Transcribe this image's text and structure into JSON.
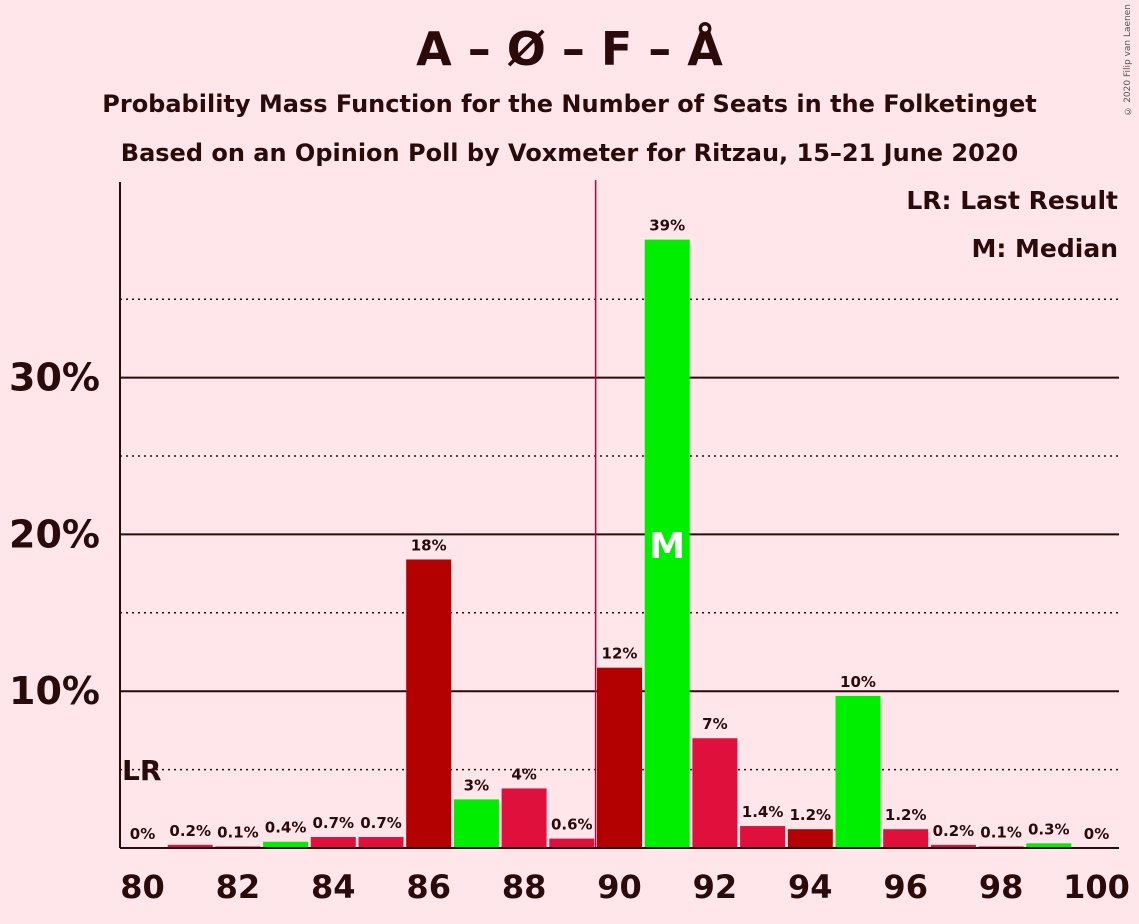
{
  "title": "A – Ø – F – Å",
  "subtitle1": "Probability Mass Function for the Number of Seats in the Folketinget",
  "subtitle2": "Based on an Opinion Poll by Voxmeter for Ritzau, 15–21 June 2020",
  "copyright": "© 2020 Filip van Laenen",
  "legend": {
    "lr": "LR: Last Result",
    "m": "M: Median"
  },
  "markers": {
    "last_result_label": "LR",
    "median_label": "M"
  },
  "colors": {
    "red_dark": "#b30000",
    "red": "#e0103c",
    "green": "#00ee00",
    "threshold": "#c0003a",
    "background": "#ffe6ea"
  },
  "chart_data": {
    "type": "bar",
    "x": [
      80,
      81,
      82,
      83,
      84,
      85,
      86,
      87,
      88,
      89,
      90,
      91,
      92,
      93,
      94,
      95,
      96,
      97,
      98,
      99,
      100
    ],
    "values": [
      0,
      0.2,
      0.1,
      0.4,
      0.7,
      0.7,
      18.4,
      3.1,
      3.8,
      0.6,
      11.5,
      38.8,
      7.0,
      1.4,
      1.2,
      9.7,
      1.2,
      0.2,
      0.1,
      0.3,
      0
    ],
    "labels": [
      "0%",
      "0.2%",
      "0.1%",
      "0.4%",
      "0.7%",
      "0.7%",
      "18%",
      "3%",
      "4%",
      "0.6%",
      "12%",
      "39%",
      "7%",
      "1.4%",
      "1.2%",
      "10%",
      "1.2%",
      "0.2%",
      "0.1%",
      "0.3%",
      "0%"
    ],
    "colors": [
      "red",
      "red",
      "red",
      "green",
      "red",
      "red",
      "red_dark",
      "green",
      "red",
      "red",
      "red_dark",
      "green",
      "red",
      "red",
      "red_dark",
      "green",
      "red",
      "red",
      "red",
      "green",
      "red"
    ],
    "x_ticks": [
      "80",
      "82",
      "84",
      "86",
      "88",
      "90",
      "92",
      "94",
      "96",
      "98",
      "100"
    ],
    "y_ticks": [
      "10%",
      "20%",
      "30%"
    ],
    "ylim": [
      0,
      42.5
    ],
    "last_result": 80,
    "median": 91,
    "majority_line": 89.5,
    "grid": true
  }
}
